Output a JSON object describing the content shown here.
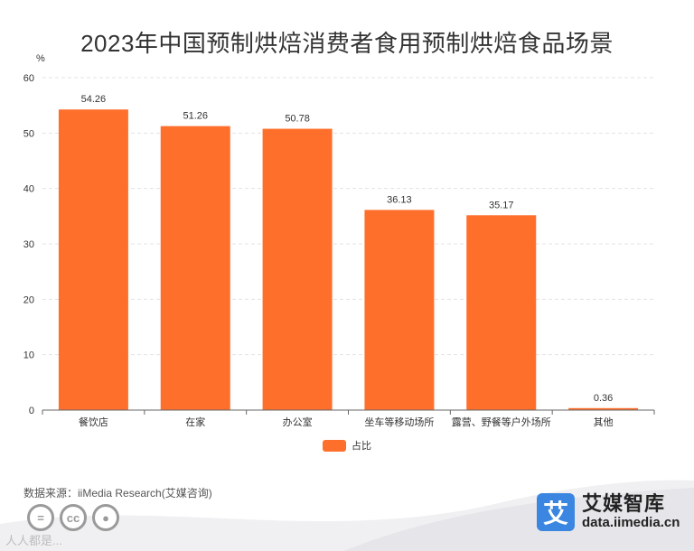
{
  "chart_data": {
    "type": "bar",
    "title": "2023年中国预制烘焙消费者食用预制烘焙食品场景",
    "ylabel": "%",
    "xlabel": "",
    "categories": [
      "餐饮店",
      "在家",
      "办公室",
      "坐车等移动场所",
      "露营、野餐等户外场所",
      "其他"
    ],
    "series": [
      {
        "name": "占比",
        "values": [
          54.26,
          51.26,
          50.78,
          36.13,
          35.17,
          0.36
        ]
      }
    ],
    "value_labels": [
      "54.26",
      "51.26",
      "50.78",
      "36.13",
      "35.17",
      "0.36"
    ],
    "ylim": [
      0,
      60
    ],
    "yticks": [
      "0",
      "10",
      "20",
      "30",
      "40",
      "50",
      "60"
    ],
    "grid": true,
    "legend_position": "bottom",
    "bar_color": "#ff6f2c"
  },
  "source": "数据来源：iiMedia Research(艾媒咨询)",
  "watermark": "人人都是...",
  "brand": {
    "logo_char": "艾",
    "name": "艾媒智库",
    "url": "data.iimedia.cn"
  },
  "license_icons": [
    "equal-icon",
    "cc-icon",
    "person-icon"
  ]
}
